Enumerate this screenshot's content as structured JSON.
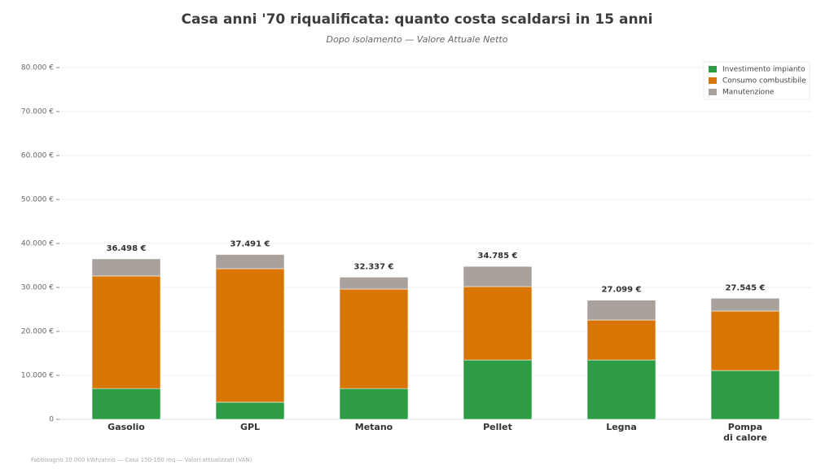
{
  "chart_data": {
    "type": "stacked_bar",
    "title": "Casa anni '70 riqualificata: quanto costa scaldarsi in 15 anni",
    "subtitle": "Dopo isolamento — Valore Attuale Netto",
    "footnote": "Fabbisogno 10.000 kWh/anno — Casa 150-160 mq — Valori attualizzati (VAN)",
    "categories": [
      "Gasolio",
      "GPL",
      "Metano",
      "Pellet",
      "Legna",
      "Pompa\ndi calore"
    ],
    "series": [
      {
        "name": "Investimento impianto",
        "color": "#2e9b45",
        "values": [
          7000,
          3900,
          7000,
          13500,
          13500,
          11100
        ]
      },
      {
        "name": "Consumo combustibile",
        "color": "#d97502",
        "values": [
          25600,
          30360,
          22630,
          16685,
          9093,
          13530
        ]
      },
      {
        "name": "Manutenzione",
        "color": "#a8a19c",
        "values": [
          3898,
          3231,
          2707,
          4600,
          4506,
          2915
        ]
      }
    ],
    "totals": {
      "values": [
        36498,
        37491,
        32337,
        34785,
        27099,
        27545
      ],
      "value_labels": [
        "36.498 €",
        "37.491 €",
        "32.337 €",
        "34.785 €",
        "27.099 €",
        "27.545 €"
      ]
    },
    "ylim": [
      0,
      80000
    ],
    "yticks": [
      0,
      {
        "value": 10000,
        "label": "10.000 €"
      },
      {
        "value": 20000,
        "label": "20.000 €"
      },
      {
        "value": 30000,
        "label": "30.000 €"
      },
      {
        "value": 40000,
        "label": "40.000 €"
      },
      {
        "value": 50000,
        "label": "50.000 €"
      },
      {
        "value": 60000,
        "label": "60.000 €"
      },
      {
        "value": 70000,
        "label": "70.000 €"
      },
      {
        "value": 80000,
        "label": "80.000 €"
      }
    ],
    "grid": true,
    "legend": "upper-right"
  }
}
